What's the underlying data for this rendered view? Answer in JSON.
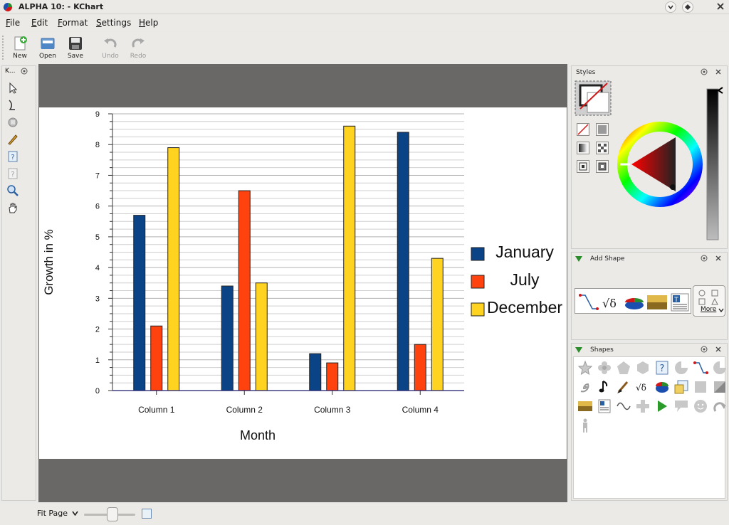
{
  "window": {
    "title": "ALPHA 10:  - KChart",
    "minimize_icon": "chevron-down-icon",
    "maximize_icon": "diamond-icon",
    "close_icon": "close-icon"
  },
  "menu": [
    "File",
    "Edit",
    "Format",
    "Settings",
    "Help"
  ],
  "toolbar": {
    "new_label": "New",
    "open_label": "Open",
    "save_label": "Save",
    "undo_label": "Undo",
    "redo_label": "Redo"
  },
  "toolbox": {
    "title": "K..."
  },
  "dock": {
    "styles_title": "Styles",
    "add_shape_title": "Add Shape",
    "more_label": "More",
    "shapes_title": "Shapes"
  },
  "status": {
    "zoom_label": "Fit Page",
    "zoom_value": 0.5
  },
  "colors": {
    "january": "#0b4387",
    "july": "#ff420e",
    "december": "#ffd320"
  },
  "chart_data": {
    "type": "bar",
    "categories": [
      "Column 1",
      "Column 2",
      "Column 3",
      "Column 4"
    ],
    "series": [
      {
        "name": "January",
        "values": [
          5.7,
          3.4,
          1.2,
          8.4
        ]
      },
      {
        "name": "July",
        "values": [
          2.1,
          6.5,
          0.9,
          1.5
        ]
      },
      {
        "name": "December",
        "values": [
          7.9,
          3.5,
          8.6,
          4.3
        ]
      }
    ],
    "title": "",
    "xlabel": "Month",
    "ylabel": "Growth in %",
    "ylim": [
      0,
      9
    ],
    "yticks": [
      "0",
      "1",
      "2",
      "3",
      "4",
      "5",
      "6",
      "7",
      "8",
      "9"
    ],
    "grid": true,
    "legend": "right"
  }
}
